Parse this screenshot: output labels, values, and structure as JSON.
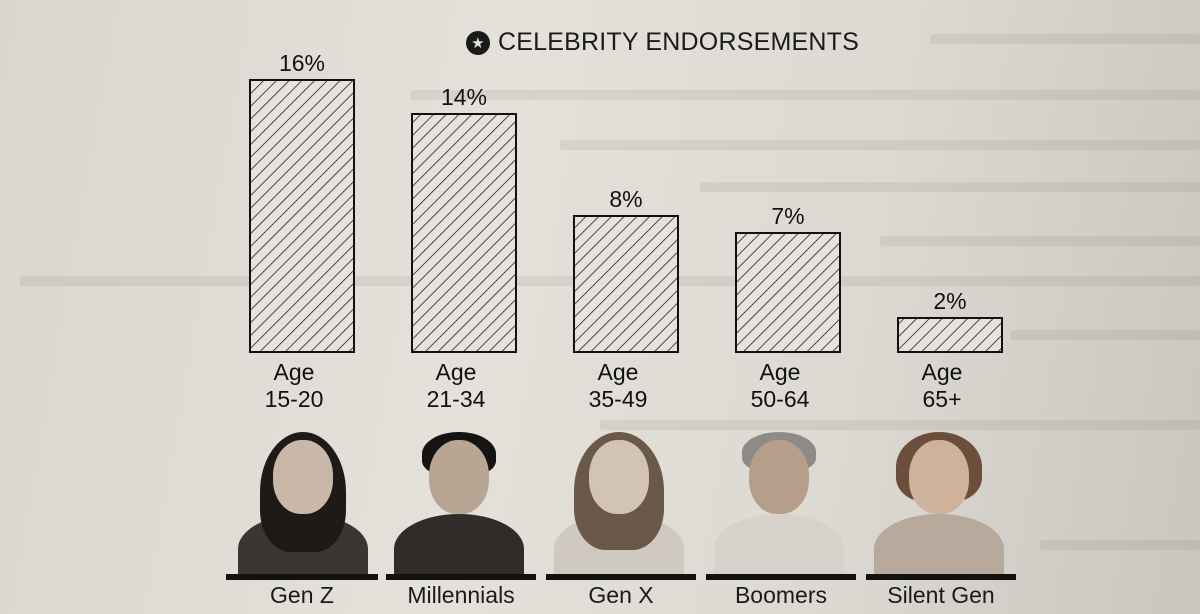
{
  "chart_data": {
    "type": "bar",
    "title": "CELEBRITY ENDORSEMENTS",
    "title_icon": "star-circle-icon",
    "categories": [
      "Age\n15-20",
      "Age\n21-34",
      "Age\n35-49",
      "Age\n50-64",
      "Age\n65+"
    ],
    "category_lines": [
      [
        "Age",
        "15-20"
      ],
      [
        "Age",
        "21-34"
      ],
      [
        "Age",
        "35-49"
      ],
      [
        "Age",
        "50-64"
      ],
      [
        "Age",
        "65+"
      ]
    ],
    "values": [
      16,
      14,
      8,
      7,
      2
    ],
    "value_labels": [
      "16%",
      "14%",
      "8%",
      "7%",
      "2%"
    ],
    "ylim": [
      0,
      16
    ],
    "grid": false,
    "bar_fill": "diagonal-hatch",
    "bar_stroke": "#111111",
    "generations": [
      "Gen Z",
      "Millennials",
      "Gen X",
      "Boomers",
      "Silent Gen"
    ]
  }
}
